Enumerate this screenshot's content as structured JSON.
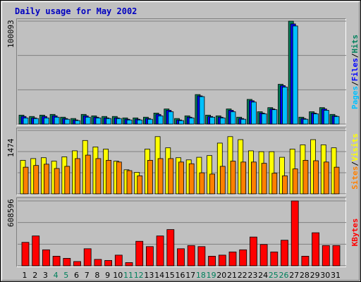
{
  "title": "Daily usage for May 2002",
  "colors": {
    "background": "#c0c0c0",
    "hits": "#00805c",
    "files": "#0000ff",
    "pages": "#00c0ff",
    "visits": "#ffff00",
    "sites": "#ff8000",
    "kbytes": "#ff0000",
    "gridline": "#808080",
    "weekday_label": "#000000",
    "weekend_label": "#00805c"
  },
  "chart_data": [
    {
      "type": "bar",
      "panel": "hits",
      "y_max_label": "100093",
      "ylim": [
        0,
        100093
      ],
      "grid": true,
      "series_label_parts": [
        "Pages",
        "/",
        "Files",
        "/",
        "Hits"
      ],
      "categories": [
        "1",
        "2",
        "3",
        "4",
        "5",
        "6",
        "7",
        "8",
        "9",
        "10",
        "11",
        "12",
        "13",
        "14",
        "15",
        "16",
        "17",
        "18",
        "19",
        "20",
        "21",
        "22",
        "23",
        "24",
        "25",
        "26",
        "27",
        "28",
        "29",
        "30",
        "31"
      ],
      "series": [
        {
          "name": "Hits",
          "values": [
            8700,
            7400,
            8700,
            9400,
            6700,
            5400,
            9400,
            8000,
            7400,
            7400,
            6000,
            6000,
            6700,
            10700,
            14700,
            5400,
            8000,
            28700,
            8700,
            8000,
            14700,
            6700,
            24000,
            12000,
            16000,
            38700,
            100093,
            6700,
            12000,
            16000,
            9400
          ]
        },
        {
          "name": "Files",
          "values": [
            7400,
            6000,
            7400,
            8000,
            5400,
            4000,
            8000,
            6700,
            6000,
            6000,
            4700,
            4700,
            5400,
            9400,
            13400,
            4000,
            6700,
            27400,
            7400,
            6700,
            13400,
            5400,
            22700,
            10700,
            14700,
            37400,
            97400,
            5400,
            10700,
            14700,
            8000
          ]
        },
        {
          "name": "Pages",
          "values": [
            6000,
            5400,
            6000,
            6700,
            4700,
            3400,
            6700,
            6000,
            5400,
            5400,
            4000,
            4000,
            4700,
            8000,
            12000,
            3400,
            6000,
            26700,
            6700,
            6000,
            12000,
            4700,
            21400,
            10000,
            14000,
            36000,
            95400,
            4700,
            10000,
            13400,
            7400
          ]
        }
      ]
    },
    {
      "type": "bar",
      "panel": "visits",
      "y_max_label": "1474",
      "ylim": [
        0,
        1474
      ],
      "grid": true,
      "series_label_parts": [
        "Sites",
        "/",
        "Visits"
      ],
      "categories": [
        "1",
        "2",
        "3",
        "4",
        "5",
        "6",
        "7",
        "8",
        "9",
        "10",
        "11",
        "12",
        "13",
        "14",
        "15",
        "16",
        "17",
        "18",
        "19",
        "20",
        "21",
        "22",
        "23",
        "24",
        "25",
        "26",
        "27",
        "28",
        "29",
        "30",
        "31"
      ],
      "series": [
        {
          "name": "Visits",
          "values": [
            780,
            820,
            840,
            760,
            860,
            1000,
            1240,
            1090,
            1040,
            760,
            560,
            500,
            1040,
            1330,
            1070,
            840,
            790,
            850,
            890,
            1180,
            1330,
            1260,
            1000,
            980,
            980,
            850,
            1040,
            1140,
            1260,
            1140,
            1070
          ]
        },
        {
          "name": "Sites",
          "values": [
            620,
            660,
            690,
            590,
            640,
            820,
            900,
            820,
            780,
            740,
            540,
            420,
            780,
            820,
            820,
            740,
            700,
            490,
            460,
            640,
            760,
            740,
            740,
            710,
            480,
            420,
            580,
            780,
            770,
            740,
            620
          ]
        }
      ]
    },
    {
      "type": "bar",
      "panel": "kbytes",
      "y_max_label": "608596",
      "ylim": [
        0,
        608596
      ],
      "grid": true,
      "series_label_parts": [
        "KBytes"
      ],
      "categories": [
        "1",
        "2",
        "3",
        "4",
        "5",
        "6",
        "7",
        "8",
        "9",
        "10",
        "11",
        "12",
        "13",
        "14",
        "15",
        "16",
        "17",
        "18",
        "19",
        "20",
        "21",
        "22",
        "23",
        "24",
        "25",
        "26",
        "27",
        "28",
        "29",
        "30",
        "31"
      ],
      "series": [
        {
          "name": "KBytes",
          "values": [
            220000,
            280000,
            150000,
            90000,
            70000,
            40000,
            160000,
            60000,
            50000,
            100000,
            30000,
            230000,
            180000,
            280000,
            340000,
            160000,
            190000,
            180000,
            90000,
            100000,
            130000,
            150000,
            270000,
            200000,
            130000,
            240000,
            608596,
            90000,
            310000,
            190000,
            190000
          ]
        }
      ]
    }
  ],
  "x_labels": [
    {
      "text": "1",
      "weekend": false
    },
    {
      "text": "2",
      "weekend": false
    },
    {
      "text": "3",
      "weekend": false
    },
    {
      "text": "4",
      "weekend": true
    },
    {
      "text": "5",
      "weekend": true
    },
    {
      "text": "6",
      "weekend": false
    },
    {
      "text": "7",
      "weekend": false
    },
    {
      "text": "8",
      "weekend": false
    },
    {
      "text": "9",
      "weekend": false
    },
    {
      "text": "10",
      "weekend": false
    },
    {
      "text": "11",
      "weekend": true
    },
    {
      "text": "12",
      "weekend": true
    },
    {
      "text": "13",
      "weekend": false
    },
    {
      "text": "14",
      "weekend": false
    },
    {
      "text": "15",
      "weekend": false
    },
    {
      "text": "16",
      "weekend": false
    },
    {
      "text": "17",
      "weekend": false
    },
    {
      "text": "18",
      "weekend": true
    },
    {
      "text": "19",
      "weekend": true
    },
    {
      "text": "20",
      "weekend": false
    },
    {
      "text": "21",
      "weekend": false
    },
    {
      "text": "22",
      "weekend": false
    },
    {
      "text": "23",
      "weekend": false
    },
    {
      "text": "24",
      "weekend": false
    },
    {
      "text": "25",
      "weekend": true
    },
    {
      "text": "26",
      "weekend": true
    },
    {
      "text": "27",
      "weekend": false
    },
    {
      "text": "28",
      "weekend": false
    },
    {
      "text": "29",
      "weekend": false
    },
    {
      "text": "30",
      "weekend": false
    },
    {
      "text": "31",
      "weekend": false
    }
  ]
}
